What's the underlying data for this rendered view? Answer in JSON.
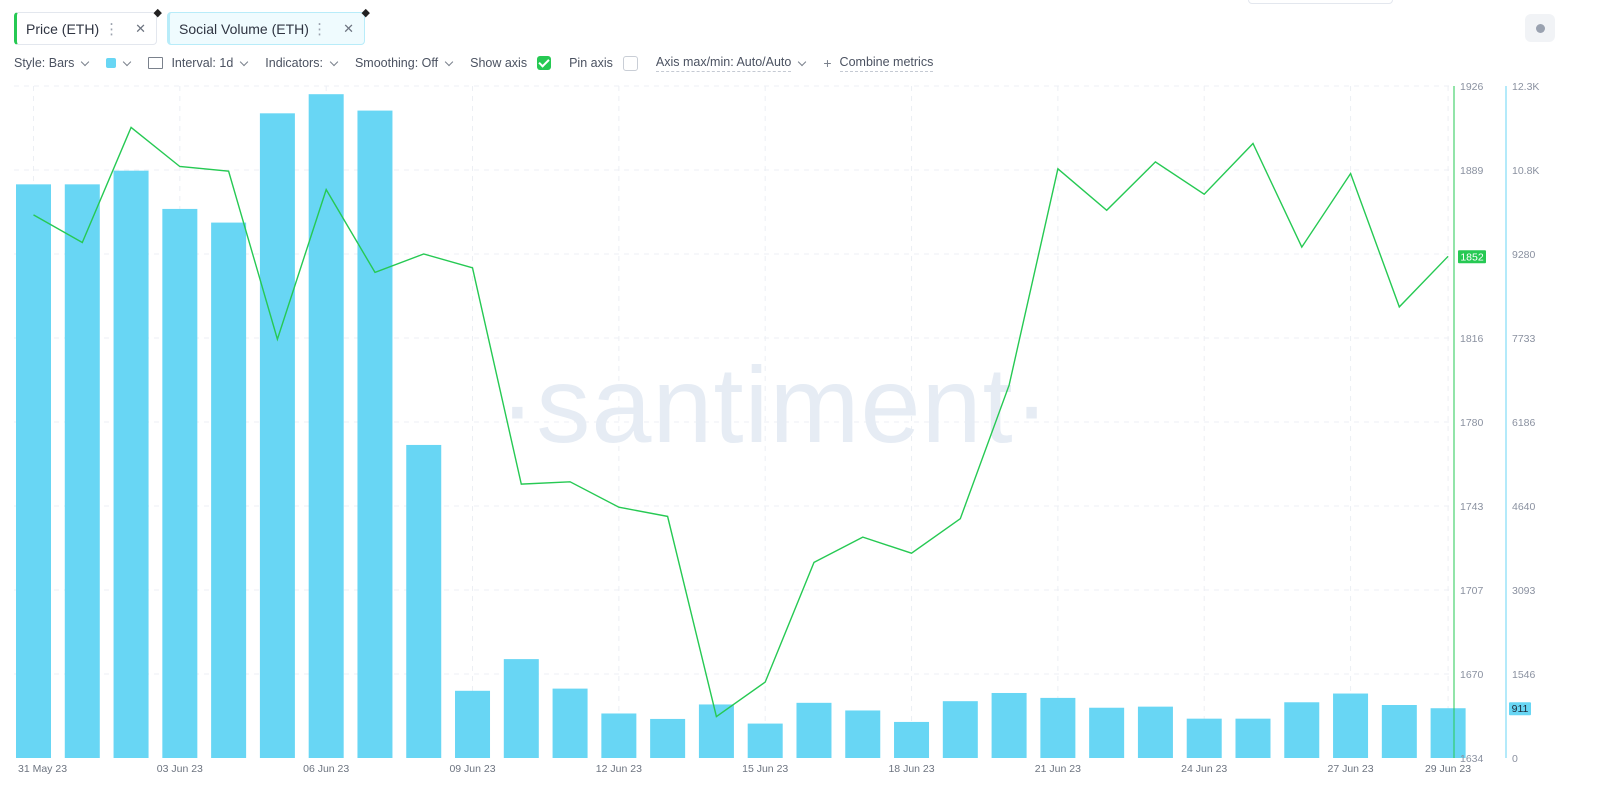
{
  "tabs": [
    {
      "label": "Price (ETH)",
      "accent": "#26c953"
    },
    {
      "label": "Social Volume (ETH)",
      "accent": "#68d6f4"
    }
  ],
  "toolbar": {
    "style": "Style: Bars",
    "interval": "Interval: 1d",
    "indicators": "Indicators:",
    "smoothing": "Smoothing: Off",
    "show_axis": "Show axis",
    "pin_axis": "Pin axis",
    "axis_maxmin": "Axis max/min: Auto/Auto",
    "combine": "Combine metrics"
  },
  "watermark": "·santiment·",
  "chart_data": {
    "type": "bar+line",
    "categories": [
      "31 May 23",
      "01 Jun 23",
      "02 Jun 23",
      "03 Jun 23",
      "04 Jun 23",
      "05 Jun 23",
      "06 Jun 23",
      "07 Jun 23",
      "08 Jun 23",
      "09 Jun 23",
      "10 Jun 23",
      "11 Jun 23",
      "12 Jun 23",
      "13 Jun 23",
      "14 Jun 23",
      "15 Jun 23",
      "16 Jun 23",
      "17 Jun 23",
      "18 Jun 23",
      "19 Jun 23",
      "20 Jun 23",
      "21 Jun 23",
      "22 Jun 23",
      "23 Jun 23",
      "24 Jun 23",
      "25 Jun 23",
      "26 Jun 23",
      "27 Jun 23",
      "28 Jun 23",
      "29 Jun 23"
    ],
    "x_tick_labels": [
      "31 May 23",
      "03 Jun 23",
      "06 Jun 23",
      "09 Jun 23",
      "12 Jun 23",
      "15 Jun 23",
      "18 Jun 23",
      "21 Jun 23",
      "24 Jun 23",
      "27 Jun 23",
      "29 Jun 23"
    ],
    "series": [
      {
        "name": "Social Volume (ETH)",
        "type": "bar",
        "color": "#68d6f4",
        "axis": "right",
        "values": [
          10500,
          10500,
          10750,
          10050,
          9800,
          11800,
          12150,
          11850,
          5730,
          1230,
          1810,
          1270,
          815,
          715,
          980,
          630,
          1010,
          870,
          660,
          1040,
          1190,
          1100,
          920,
          940,
          720,
          720,
          1020,
          1180,
          970,
          911
        ]
      },
      {
        "name": "Price (ETH)",
        "type": "line",
        "color": "#26c953",
        "axis": "left",
        "values": [
          1870,
          1858,
          1908,
          1891,
          1889,
          1816,
          1881,
          1845,
          1853,
          1847,
          1753,
          1754,
          1743,
          1739,
          1652,
          1667,
          1719,
          1730,
          1723,
          1738,
          1796,
          1890,
          1872,
          1893,
          1879,
          1901,
          1856,
          1888,
          1830,
          1852
        ]
      }
    ],
    "left_axis": {
      "ticks": [
        1926,
        1889,
        1852,
        1816,
        1780,
        1743,
        1707,
        1670,
        1634
      ],
      "range": [
        1634,
        1926
      ],
      "last_value": "1852",
      "color": "#26c953"
    },
    "right_axis": {
      "ticks": [
        "12.3K",
        "10.8K",
        "9280",
        "7733",
        "6186",
        "4640",
        "3093",
        "1546",
        "0"
      ],
      "range": [
        0,
        12300
      ],
      "last_value": "911",
      "color": "#68d6f4"
    },
    "grid": true
  }
}
